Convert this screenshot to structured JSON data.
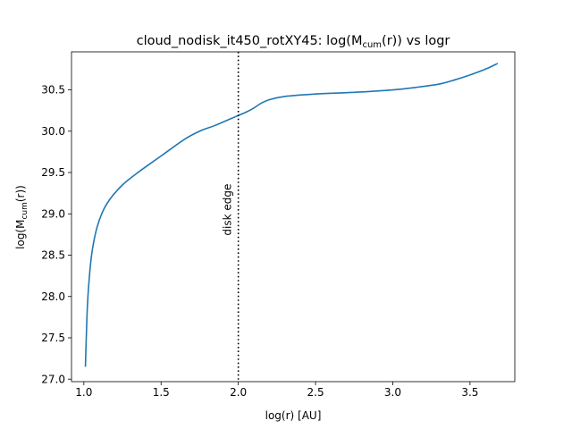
{
  "chart_data": {
    "type": "line",
    "title": {
      "prefix": "cloud_nodisk_it450_rotXY45: log(M",
      "subscript": "cum",
      "suffix": "(r)) vs logr"
    },
    "xlabel": "log(r) [AU]",
    "ylabel": {
      "prefix": "log(M",
      "subscript": "cum",
      "suffix": "(r))"
    },
    "xlim": [
      0.92,
      3.79
    ],
    "ylim": [
      26.97,
      30.96
    ],
    "xticks": [
      1.0,
      1.5,
      2.0,
      2.5,
      3.0,
      3.5
    ],
    "xtick_labels": [
      "1.0",
      "1.5",
      "2.0",
      "2.5",
      "3.0",
      "3.5"
    ],
    "yticks": [
      27.0,
      27.5,
      28.0,
      28.5,
      29.0,
      29.5,
      30.0,
      30.5
    ],
    "ytick_labels": [
      "27.0",
      "27.5",
      "28.0",
      "28.5",
      "29.0",
      "29.5",
      "30.0",
      "30.5"
    ],
    "grid": false,
    "legend": "none",
    "line_color": "#1f77b4",
    "series": [
      {
        "x": [
          1.01,
          1.02,
          1.03,
          1.05,
          1.08,
          1.12,
          1.17,
          1.25,
          1.35,
          1.5,
          1.65,
          1.75,
          1.85,
          1.95,
          2.0,
          2.05,
          2.1,
          2.15,
          2.2,
          2.3,
          2.5,
          2.75,
          3.0,
          3.15,
          3.3,
          3.4,
          3.5,
          3.6,
          3.68
        ],
        "y": [
          27.15,
          27.75,
          28.1,
          28.5,
          28.8,
          29.02,
          29.18,
          29.35,
          29.5,
          29.7,
          29.9,
          30.0,
          30.07,
          30.15,
          30.19,
          30.23,
          30.28,
          30.34,
          30.38,
          30.42,
          30.45,
          30.47,
          30.5,
          30.53,
          30.57,
          30.62,
          30.68,
          30.75,
          30.82
        ]
      }
    ],
    "annotations": [
      {
        "type": "vline",
        "x": 2.0,
        "style": "dotted",
        "label": "disk edge",
        "label_y": 29.05
      }
    ]
  }
}
